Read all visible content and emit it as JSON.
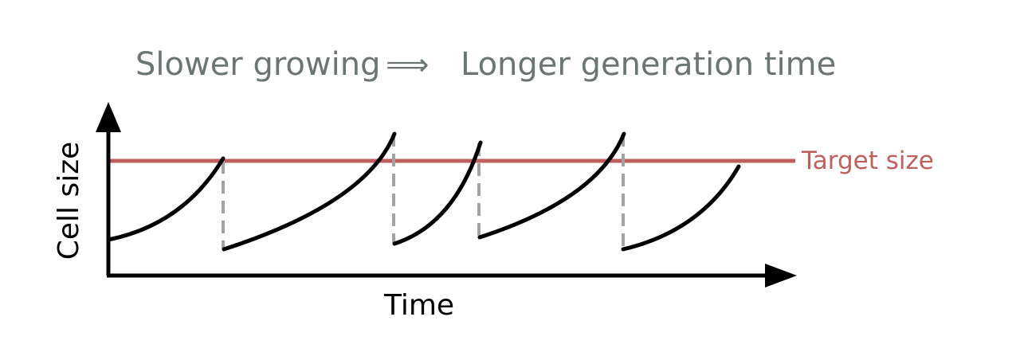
{
  "title": {
    "left": "Slower growing",
    "arrow": "⟹",
    "right": "Longer generation time"
  },
  "axes": {
    "x_label": "Time",
    "y_label": "Cell size"
  },
  "target": {
    "label": "Target size"
  },
  "colors": {
    "title": "#6b7572",
    "target": "#c0605d",
    "curve": "#000000",
    "division": "#a3a3a3",
    "axis": "#000000"
  }
}
